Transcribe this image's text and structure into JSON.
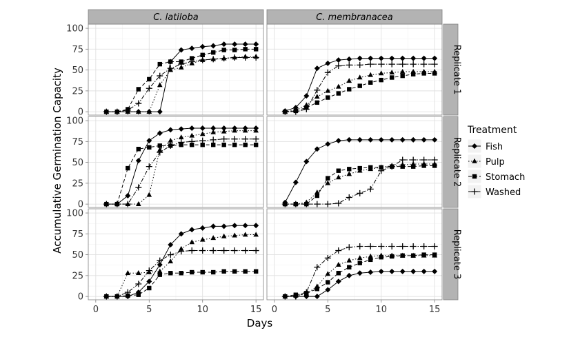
{
  "chart_data": {
    "type": "line",
    "title": "",
    "xlabel": "Days",
    "ylabel": "Accumulative Germination Capacity",
    "xlim": [
      -0.7,
      15.7
    ],
    "ylim": [
      -4,
      105
    ],
    "xticks": [
      "0",
      "5",
      "10",
      "15"
    ],
    "yticks": [
      "0",
      "25",
      "50",
      "75",
      "100"
    ],
    "grid": true,
    "columns": [
      "C. latiloba",
      "C. membranacea"
    ],
    "rows": [
      "Replicate 1",
      "Replicate 2",
      "Replicate 3"
    ],
    "legend": {
      "title": "Treatment",
      "position": "right",
      "entries": [
        "Fish",
        "Pulp",
        "Stomach",
        "Washed"
      ]
    },
    "x": [
      1,
      2,
      3,
      4,
      5,
      6,
      7,
      8,
      9,
      10,
      11,
      12,
      13,
      14,
      15
    ],
    "panels": [
      {
        "column": "C. latiloba",
        "row": "Replicate 1",
        "series": [
          {
            "name": "Fish",
            "values": [
              0,
              0,
              0,
              0,
              0,
              0,
              60,
              74,
              76,
              78,
              79,
              81,
              81,
              81,
              81
            ]
          },
          {
            "name": "Pulp",
            "values": [
              0,
              0,
              0,
              0,
              0,
              32,
              50,
              53,
              58,
              62,
              63,
              64,
              65,
              66,
              66
            ]
          },
          {
            "name": "Stomach",
            "values": [
              0,
              0,
              3,
              27,
              39,
              57,
              60,
              60,
              64,
              68,
              71,
              74,
              74,
              75,
              75
            ]
          },
          {
            "name": "Washed",
            "values": [
              0,
              0,
              2,
              10,
              28,
              43,
              52,
              57,
              60,
              62,
              63,
              64,
              65,
              65,
              65
            ]
          }
        ]
      },
      {
        "column": "C. membranacea",
        "row": "Replicate 1",
        "series": [
          {
            "name": "Fish",
            "values": [
              1,
              5,
              19,
              52,
              58,
              62,
              63,
              64,
              64,
              64,
              64,
              64,
              64,
              64,
              64
            ]
          },
          {
            "name": "Pulp",
            "values": [
              0,
              2,
              8,
              18,
              25,
              30,
              37,
              41,
              44,
              46,
              47,
              48,
              48,
              48,
              48
            ]
          },
          {
            "name": "Stomach",
            "values": [
              0,
              1,
              5,
              11,
              17,
              22,
              27,
              31,
              35,
              38,
              41,
              43,
              45,
              46,
              46
            ]
          },
          {
            "name": "Washed",
            "values": [
              0,
              0,
              3,
              26,
              47,
              55,
              56,
              56,
              57,
              57,
              57,
              57,
              57,
              57,
              57
            ]
          }
        ]
      },
      {
        "column": "C. latiloba",
        "row": "Replicate 2",
        "series": [
          {
            "name": "Fish",
            "values": [
              0,
              0,
              10,
              52,
              76,
              85,
              89,
              90,
              91,
              91,
              91,
              91,
              91,
              91,
              91
            ]
          },
          {
            "name": "Pulp",
            "values": [
              0,
              0,
              0,
              0,
              11,
              65,
              76,
              80,
              82,
              84,
              86,
              87,
              88,
              88,
              88
            ]
          },
          {
            "name": "Stomach",
            "values": [
              0,
              0,
              43,
              66,
              68,
              70,
              70,
              71,
              71,
              71,
              71,
              71,
              71,
              71,
              71
            ]
          },
          {
            "name": "Washed",
            "values": [
              0,
              0,
              0,
              20,
              45,
              62,
              70,
              74,
              75,
              76,
              77,
              78,
              78,
              78,
              78
            ]
          }
        ]
      },
      {
        "column": "C. membranacea",
        "row": "Replicate 2",
        "series": [
          {
            "name": "Fish",
            "values": [
              2,
              26,
              51,
              66,
              72,
              76,
              77,
              77,
              77,
              77,
              77,
              77,
              77,
              77,
              77
            ]
          },
          {
            "name": "Pulp",
            "values": [
              0,
              0,
              2,
              14,
              25,
              32,
              36,
              40,
              42,
              44,
              46,
              47,
              48,
              48,
              48
            ]
          },
          {
            "name": "Stomach",
            "values": [
              0,
              0,
              0,
              10,
              31,
              40,
              42,
              43,
              44,
              44,
              45,
              45,
              45,
              46,
              46
            ]
          },
          {
            "name": "Washed",
            "values": [
              0,
              0,
              0,
              0,
              0,
              1,
              8,
              13,
              18,
              40,
              45,
              53,
              53,
              53,
              53
            ]
          }
        ]
      },
      {
        "column": "C. latiloba",
        "row": "Replicate 3",
        "series": [
          {
            "name": "Fish",
            "values": [
              0,
              0,
              0,
              5,
              18,
              38,
              62,
              75,
              80,
              82,
              84,
              84,
              85,
              85,
              85
            ]
          },
          {
            "name": "Pulp",
            "values": [
              0,
              0,
              28,
              28,
              29,
              30,
              42,
              57,
              65,
              68,
              70,
              72,
              73,
              74,
              74
            ]
          },
          {
            "name": "Stomach",
            "values": [
              0,
              0,
              1,
              2,
              10,
              26,
              28,
              28,
              29,
              29,
              29,
              30,
              30,
              30,
              30
            ]
          },
          {
            "name": "Washed",
            "values": [
              0,
              0,
              5,
              15,
              31,
              43,
              50,
              54,
              55,
              55,
              55,
              55,
              55,
              55,
              55
            ]
          }
        ]
      },
      {
        "column": "C. membranacea",
        "row": "Replicate 3",
        "series": [
          {
            "name": "Fish",
            "values": [
              0,
              0,
              0,
              0,
              8,
              18,
              25,
              28,
              29,
              30,
              30,
              30,
              30,
              30,
              30
            ]
          },
          {
            "name": "Pulp",
            "values": [
              0,
              1,
              3,
              12,
              27,
              38,
              43,
              46,
              48,
              49,
              49,
              49,
              49,
              49,
              49
            ]
          },
          {
            "name": "Stomach",
            "values": [
              0,
              2,
              4,
              9,
              17,
              28,
              35,
              40,
              44,
              47,
              48,
              49,
              49,
              50,
              50
            ]
          },
          {
            "name": "Washed",
            "values": [
              0,
              0,
              5,
              35,
              46,
              55,
              59,
              60,
              60,
              60,
              60,
              60,
              60,
              60,
              60
            ]
          }
        ]
      }
    ]
  }
}
